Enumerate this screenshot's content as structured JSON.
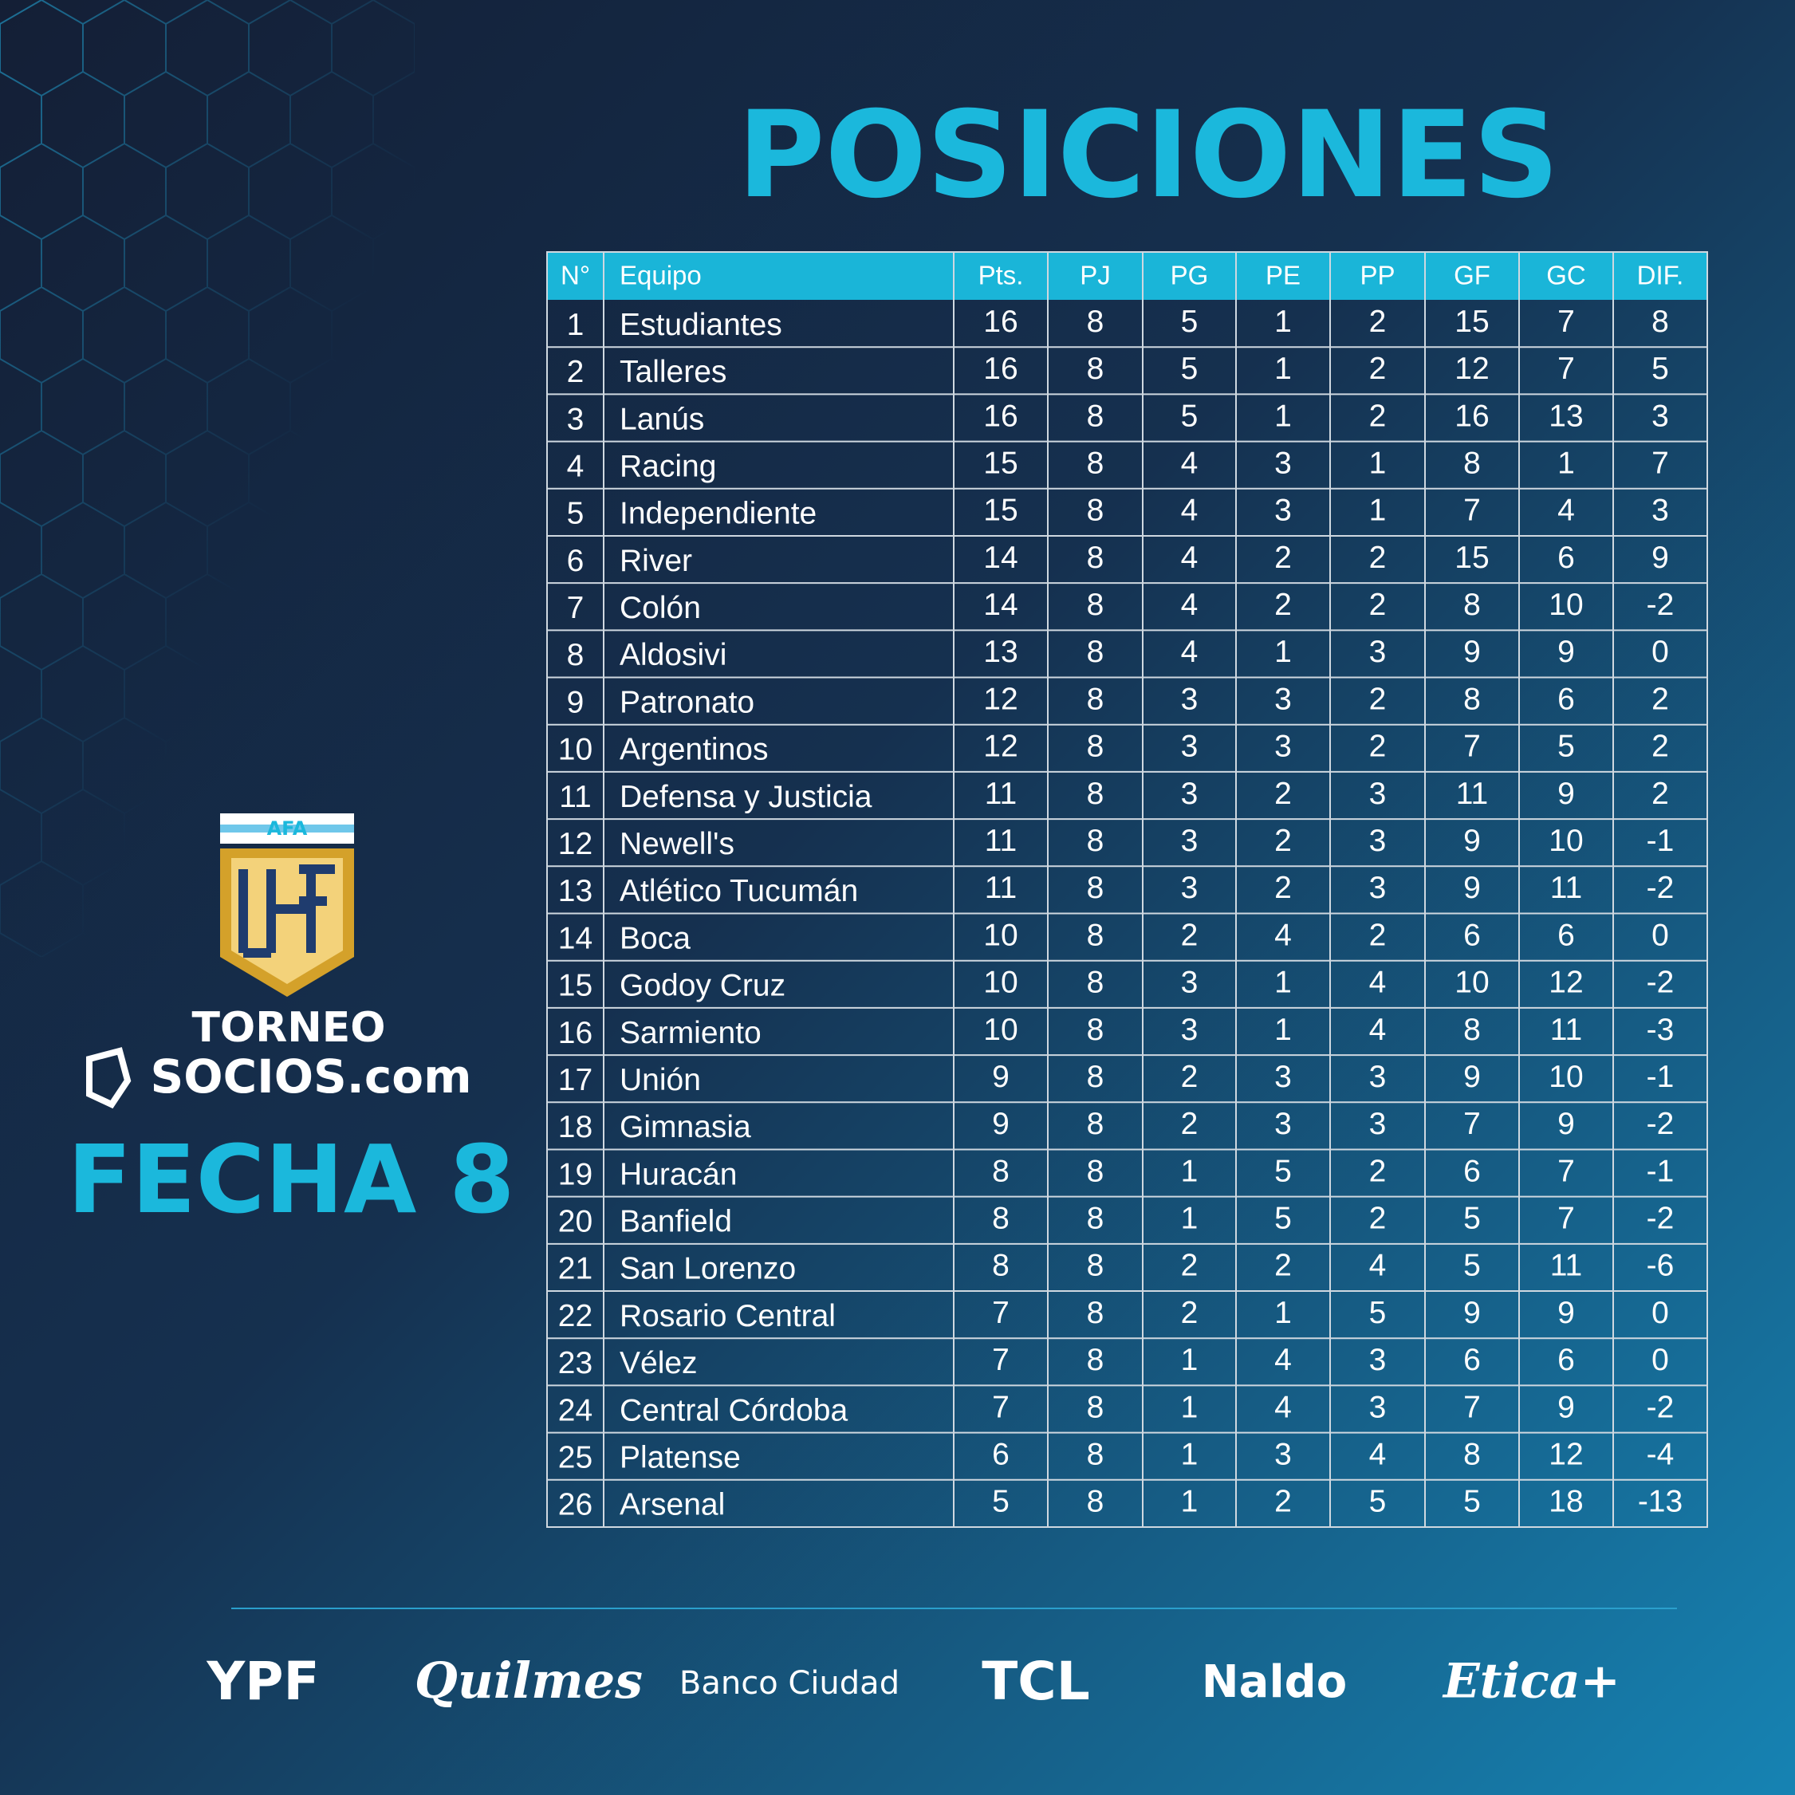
{
  "header": {
    "title": "POSICIONES"
  },
  "table": {
    "headers": [
      "N°",
      "Equipo",
      "Pts.",
      "PJ",
      "PG",
      "PE",
      "PP",
      "GF",
      "GC",
      "DIF."
    ],
    "rows": [
      [
        1,
        "Estudiantes",
        16,
        8,
        5,
        1,
        2,
        15,
        7,
        8
      ],
      [
        2,
        "Talleres",
        16,
        8,
        5,
        1,
        2,
        12,
        7,
        5
      ],
      [
        3,
        "Lanús",
        16,
        8,
        5,
        1,
        2,
        16,
        13,
        3
      ],
      [
        4,
        "Racing",
        15,
        8,
        4,
        3,
        1,
        8,
        1,
        7
      ],
      [
        5,
        "Independiente",
        15,
        8,
        4,
        3,
        1,
        7,
        4,
        3
      ],
      [
        6,
        "River",
        14,
        8,
        4,
        2,
        2,
        15,
        6,
        9
      ],
      [
        7,
        "Colón",
        14,
        8,
        4,
        2,
        2,
        8,
        10,
        -2
      ],
      [
        8,
        "Aldosivi",
        13,
        8,
        4,
        1,
        3,
        9,
        9,
        0
      ],
      [
        9,
        "Patronato",
        12,
        8,
        3,
        3,
        2,
        8,
        6,
        2
      ],
      [
        10,
        "Argentinos",
        12,
        8,
        3,
        3,
        2,
        7,
        5,
        2
      ],
      [
        11,
        "Defensa y Justicia",
        11,
        8,
        3,
        2,
        3,
        11,
        9,
        2
      ],
      [
        12,
        "Newell's",
        11,
        8,
        3,
        2,
        3,
        9,
        10,
        -1
      ],
      [
        13,
        "Atlético Tucumán",
        11,
        8,
        3,
        2,
        3,
        9,
        11,
        -2
      ],
      [
        14,
        "Boca",
        10,
        8,
        2,
        4,
        2,
        6,
        6,
        0
      ],
      [
        15,
        "Godoy Cruz",
        10,
        8,
        3,
        1,
        4,
        10,
        12,
        -2
      ],
      [
        16,
        "Sarmiento",
        10,
        8,
        3,
        1,
        4,
        8,
        11,
        -3
      ],
      [
        17,
        "Unión",
        9,
        8,
        2,
        3,
        3,
        9,
        10,
        -1
      ],
      [
        18,
        "Gimnasia",
        9,
        8,
        2,
        3,
        3,
        7,
        9,
        -2
      ],
      [
        19,
        "Huracán",
        8,
        8,
        1,
        5,
        2,
        6,
        7,
        -1
      ],
      [
        20,
        "Banfield",
        8,
        8,
        1,
        5,
        2,
        5,
        7,
        -2
      ],
      [
        21,
        "San Lorenzo",
        8,
        8,
        2,
        2,
        4,
        5,
        11,
        -6
      ],
      [
        22,
        "Rosario Central",
        7,
        8,
        2,
        1,
        5,
        9,
        9,
        0
      ],
      [
        23,
        "Vélez",
        7,
        8,
        1,
        4,
        3,
        6,
        6,
        0
      ],
      [
        24,
        "Central Córdoba",
        7,
        8,
        1,
        4,
        3,
        7,
        9,
        -2
      ],
      [
        25,
        "Platense",
        6,
        8,
        1,
        3,
        4,
        8,
        12,
        -4
      ],
      [
        26,
        "Arsenal",
        5,
        8,
        1,
        2,
        5,
        5,
        18,
        -13
      ]
    ]
  },
  "sidebar": {
    "badge": "AFA",
    "tournament_line1": "TORNEO",
    "tournament_line2": "SOCIOS.com",
    "round": "FECHA 8"
  },
  "sponsors": [
    "YPF",
    "Quilmes",
    "Banco Ciudad",
    "TCL",
    "Naldo",
    "Etica+"
  ]
}
